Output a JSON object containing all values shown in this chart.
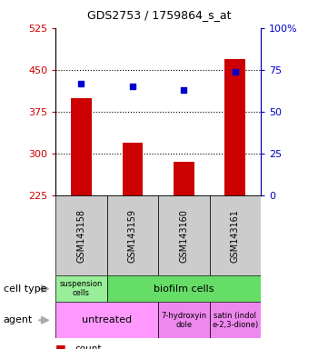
{
  "title": "GDS2753 / 1759864_s_at",
  "samples": [
    "GSM143158",
    "GSM143159",
    "GSM143160",
    "GSM143161"
  ],
  "counts": [
    400,
    320,
    285,
    470
  ],
  "percentile_ranks": [
    67,
    65,
    63,
    74
  ],
  "ylim_left": [
    225,
    525
  ],
  "ylim_right": [
    0,
    100
  ],
  "yticks_left": [
    225,
    300,
    375,
    450,
    525
  ],
  "yticks_right": [
    0,
    25,
    50,
    75,
    100
  ],
  "bar_color": "#cc0000",
  "dot_color": "#0000cc",
  "bar_width": 0.4,
  "cell_type_colors": [
    "#99ee99",
    "#66dd66"
  ],
  "agent_colors": [
    "#ff99ff",
    "#ee88ee",
    "#ee88ee"
  ],
  "background": "#ffffff",
  "gray_box": "#cccccc",
  "arrow_color": "#aaaaaa"
}
